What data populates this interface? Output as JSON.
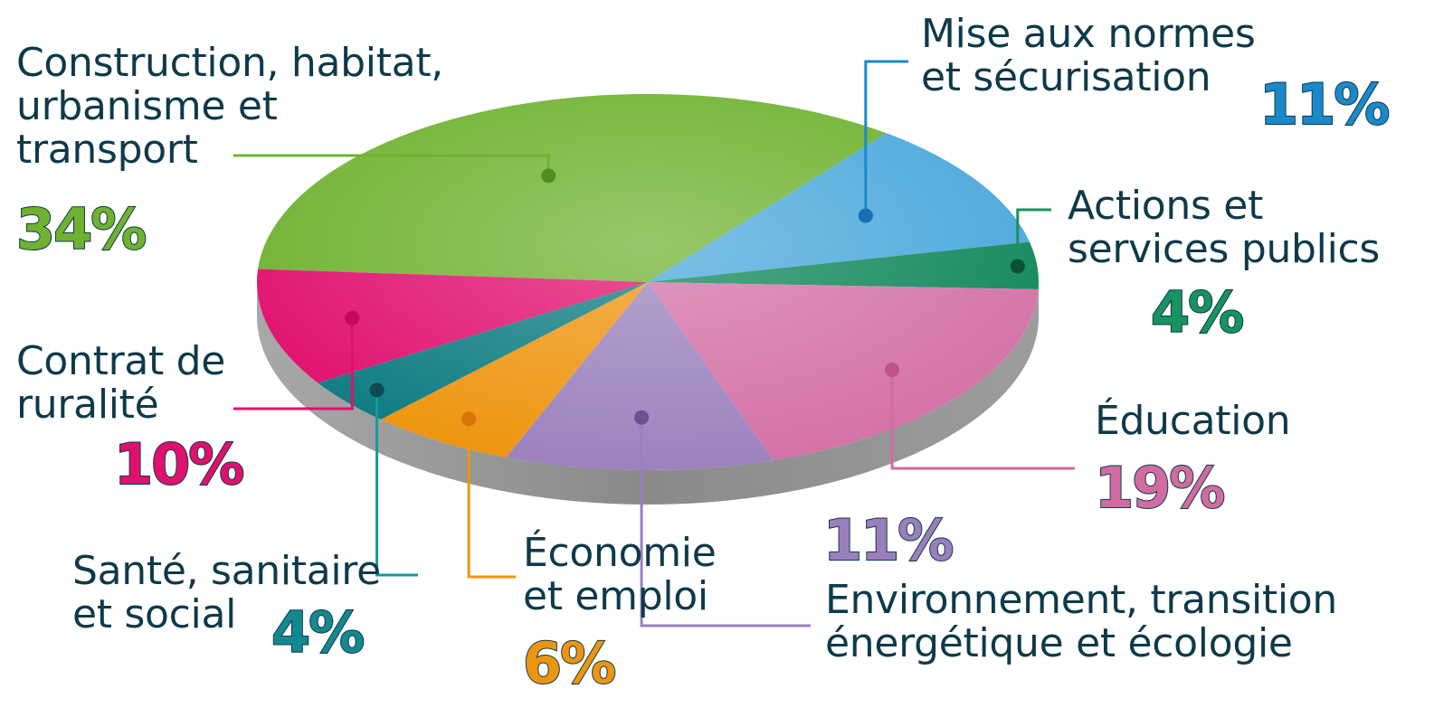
{
  "chart_data": {
    "type": "pie",
    "title": "",
    "slices": [
      {
        "label": "Construction, habitat, urbanisme et transport",
        "value": 34,
        "value_label": "34%",
        "color": "#6fb230"
      },
      {
        "label": "Mise aux normes et sécurisation",
        "value": 11,
        "value_label": "11%",
        "color": "#4aa8dc"
      },
      {
        "label": "Actions et services publics",
        "value": 4,
        "value_label": "4%",
        "color": "#10875a"
      },
      {
        "label": "Éducation",
        "value": 19,
        "value_label": "19%",
        "color": "#d472a6"
      },
      {
        "label": "Environnement, transition énergétique et écologie",
        "value": 11,
        "value_label": "11%",
        "color": "#9c82be"
      },
      {
        "label": "Économie et emploi",
        "value": 6,
        "value_label": "6%",
        "color": "#ee950f"
      },
      {
        "label": "Santé, sanitaire et social",
        "value": 4,
        "value_label": "4%",
        "color": "#0d7c82"
      },
      {
        "label": "Contrat de ruralité",
        "value": 10,
        "value_label": "10%",
        "color": "#e0106e"
      }
    ],
    "style": "3d-tilted-pie",
    "legend": "none (callout labels)"
  },
  "colors": {
    "text": "#0e3a4a",
    "edge": "#8e8e8e",
    "pct_construction": "#6fb230",
    "pct_mise": "#1b89c9",
    "pct_actions": "#17935f",
    "pct_education": "#d16ba0",
    "pct_environnement": "#9a7fbd",
    "pct_economie": "#ee950f",
    "pct_sante": "#138890",
    "pct_contrat": "#e0106e"
  }
}
